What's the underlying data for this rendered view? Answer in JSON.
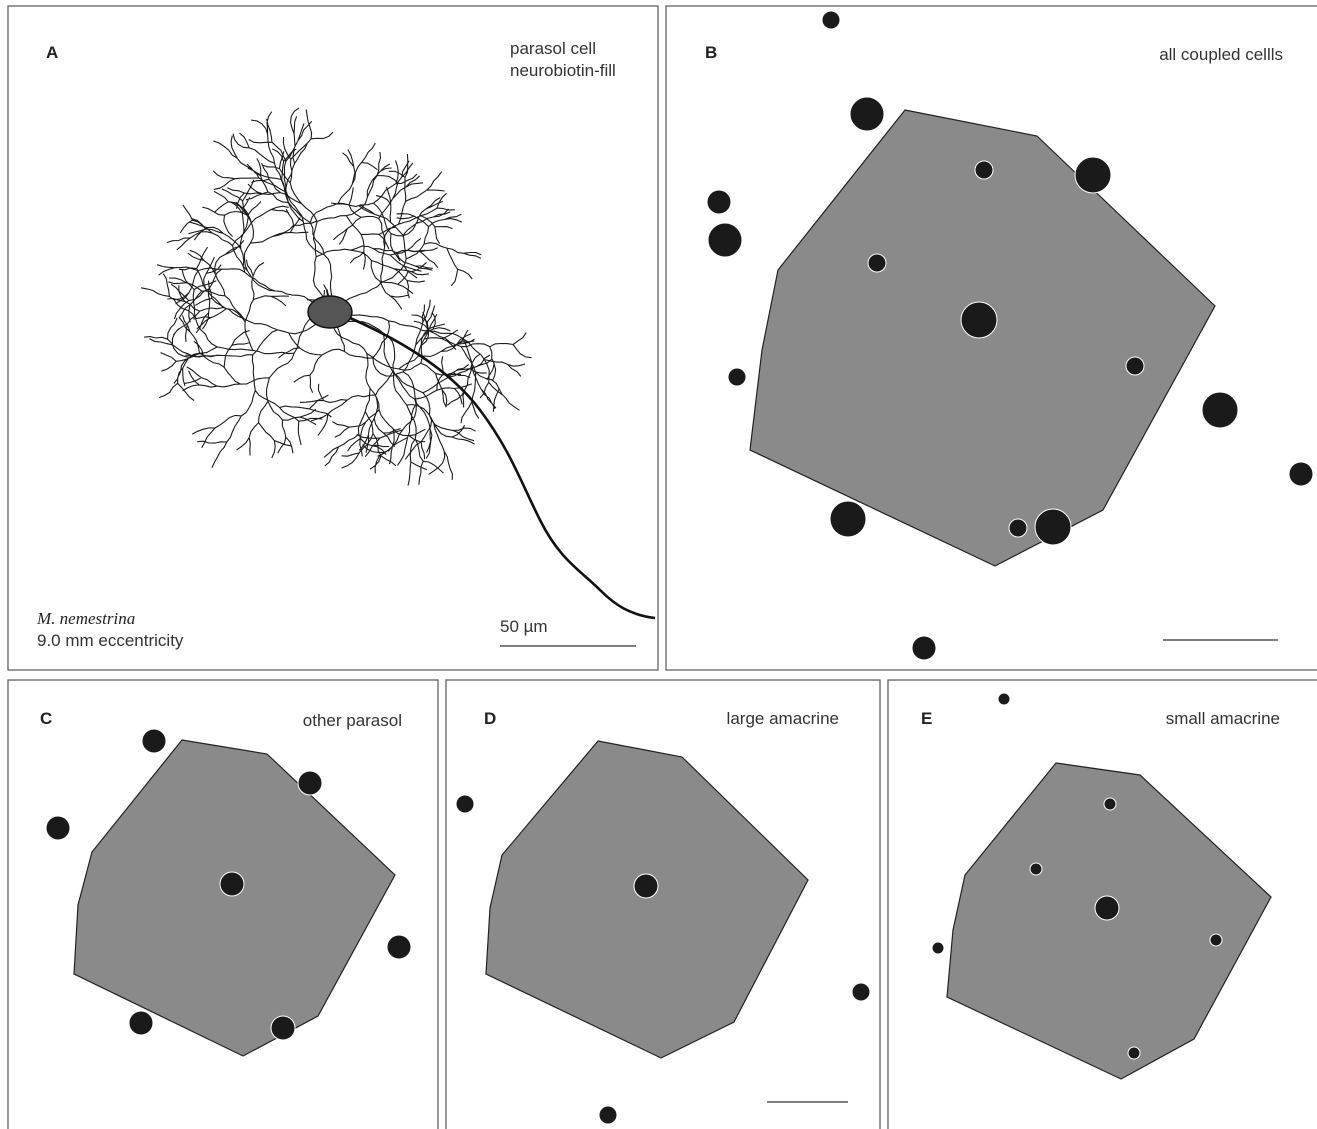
{
  "panels": [
    {
      "label": "A",
      "title_lines": [
        "parasol cell",
        "neurobiotin-fill"
      ],
      "species": "M. nemestrina",
      "eccentricity": "9.0 mm eccentricity",
      "scale_bar": "50 µm"
    },
    {
      "label": "B",
      "title": "all coupled cellls"
    },
    {
      "label": "C",
      "title": "other parasol"
    },
    {
      "label": "D",
      "title": "large amacrine"
    },
    {
      "label": "E",
      "title": "small amacrine"
    }
  ]
}
